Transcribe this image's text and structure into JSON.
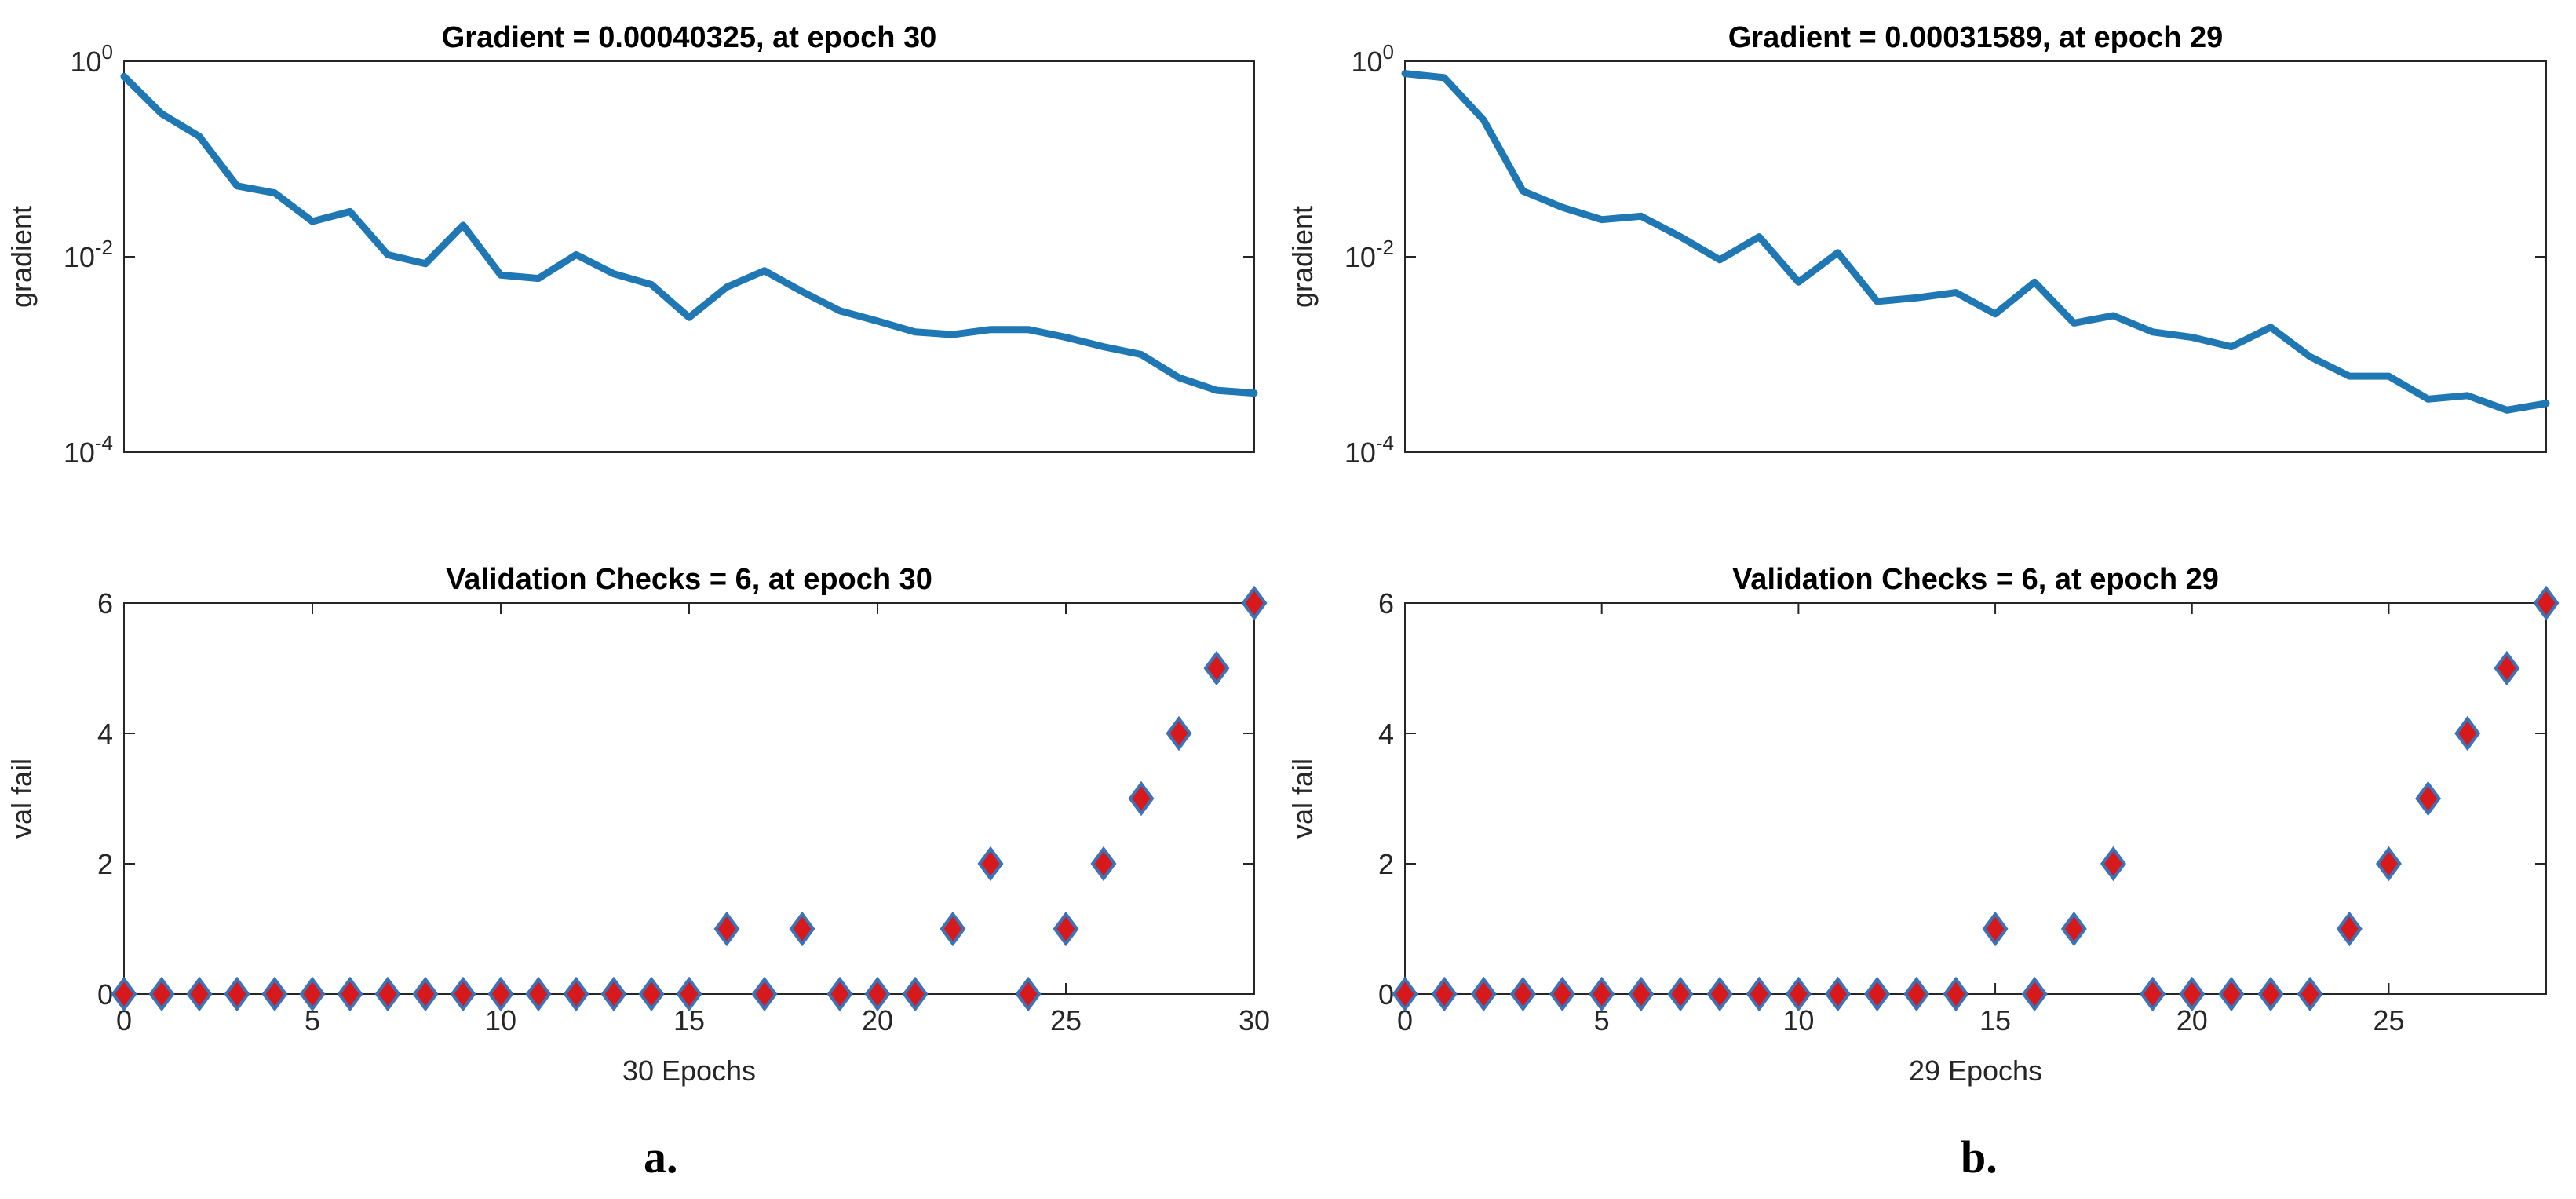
{
  "chart_data": [
    {
      "id": "a-gradient",
      "type": "line",
      "yscale": "log",
      "title": "Gradient = 0.00040325, at epoch 30",
      "ylabel": "gradient",
      "xlabel": "",
      "xlim": [
        0,
        30
      ],
      "ylim": [
        0.0001,
        1
      ],
      "y_ticks": [
        {
          "value": 1,
          "label": "10",
          "exp": "0"
        },
        {
          "value": 0.01,
          "label": "10",
          "exp": "-2"
        },
        {
          "value": 0.0001,
          "label": "10",
          "exp": "-4"
        }
      ],
      "x_ticks": [],
      "series": [
        {
          "name": "gradient",
          "color": "#1f77b4",
          "x": [
            0,
            1,
            2,
            3,
            4,
            5,
            6,
            7,
            8,
            9,
            10,
            11,
            12,
            13,
            14,
            15,
            16,
            17,
            18,
            19,
            20,
            21,
            22,
            23,
            24,
            25,
            26,
            27,
            28,
            29,
            30
          ],
          "y": [
            0.7,
            0.29,
            0.17,
            0.053,
            0.045,
            0.023,
            0.029,
            0.0105,
            0.0085,
            0.021,
            0.0065,
            0.006,
            0.0105,
            0.0067,
            0.0052,
            0.0024,
            0.0049,
            0.0072,
            0.0044,
            0.0028,
            0.0022,
            0.0017,
            0.0016,
            0.0018,
            0.0018,
            0.0015,
            0.0012,
            0.001,
            0.00058,
            0.00043,
            0.00040325
          ]
        }
      ]
    },
    {
      "id": "a-val",
      "type": "scatter",
      "title": "Validation Checks = 6, at epoch 30",
      "ylabel": "val fail",
      "xlabel": "30 Epochs",
      "xlim": [
        0,
        30
      ],
      "ylim": [
        0,
        6
      ],
      "y_ticks": [
        {
          "value": 0,
          "label": "0"
        },
        {
          "value": 2,
          "label": "2"
        },
        {
          "value": 4,
          "label": "4"
        },
        {
          "value": 6,
          "label": "6"
        }
      ],
      "x_ticks": [
        {
          "value": 0,
          "label": "0"
        },
        {
          "value": 5,
          "label": "5"
        },
        {
          "value": 10,
          "label": "10"
        },
        {
          "value": 15,
          "label": "15"
        },
        {
          "value": 20,
          "label": "20"
        },
        {
          "value": 25,
          "label": "25"
        },
        {
          "value": 30,
          "label": "30"
        }
      ],
      "series": [
        {
          "name": "val fail",
          "marker": "diamond",
          "fill": "#d7191c",
          "edge": "#3b73b9",
          "x": [
            0,
            1,
            2,
            3,
            4,
            5,
            6,
            7,
            8,
            9,
            10,
            11,
            12,
            13,
            14,
            15,
            16,
            17,
            18,
            19,
            20,
            21,
            22,
            23,
            24,
            25,
            26,
            27,
            28,
            29,
            30
          ],
          "y": [
            0,
            0,
            0,
            0,
            0,
            0,
            0,
            0,
            0,
            0,
            0,
            0,
            0,
            0,
            0,
            0,
            1,
            0,
            1,
            0,
            0,
            0,
            1,
            2,
            0,
            1,
            2,
            3,
            4,
            5,
            6
          ]
        }
      ]
    },
    {
      "id": "b-gradient",
      "type": "line",
      "yscale": "log",
      "title": "Gradient = 0.00031589, at epoch 29",
      "ylabel": "gradient",
      "xlabel": "",
      "xlim": [
        0,
        29
      ],
      "ylim": [
        0.0001,
        1
      ],
      "y_ticks": [
        {
          "value": 1,
          "label": "10",
          "exp": "0"
        },
        {
          "value": 0.01,
          "label": "10",
          "exp": "-2"
        },
        {
          "value": 0.0001,
          "label": "10",
          "exp": "-4"
        }
      ],
      "x_ticks": [],
      "series": [
        {
          "name": "gradient",
          "color": "#1f77b4",
          "x": [
            0,
            1,
            2,
            3,
            4,
            5,
            6,
            7,
            8,
            9,
            10,
            11,
            12,
            13,
            14,
            15,
            16,
            17,
            18,
            19,
            20,
            21,
            22,
            23,
            24,
            25,
            26,
            27,
            28,
            29
          ],
          "y": [
            0.75,
            0.68,
            0.25,
            0.047,
            0.032,
            0.024,
            0.026,
            0.016,
            0.0093,
            0.016,
            0.0055,
            0.011,
            0.0035,
            0.0038,
            0.0043,
            0.0026,
            0.0055,
            0.0021,
            0.0025,
            0.0017,
            0.0015,
            0.0012,
            0.0019,
            0.00095,
            0.0006,
            0.0006,
            0.00035,
            0.00038,
            0.00027,
            0.00031589
          ]
        }
      ]
    },
    {
      "id": "b-val",
      "type": "scatter",
      "title": "Validation Checks = 6, at epoch 29",
      "ylabel": "val fail",
      "xlabel": "29 Epochs",
      "xlim": [
        0,
        29
      ],
      "ylim": [
        0,
        6
      ],
      "y_ticks": [
        {
          "value": 0,
          "label": "0"
        },
        {
          "value": 2,
          "label": "2"
        },
        {
          "value": 4,
          "label": "4"
        },
        {
          "value": 6,
          "label": "6"
        }
      ],
      "x_ticks": [
        {
          "value": 0,
          "label": "0"
        },
        {
          "value": 5,
          "label": "5"
        },
        {
          "value": 10,
          "label": "10"
        },
        {
          "value": 15,
          "label": "15"
        },
        {
          "value": 20,
          "label": "20"
        },
        {
          "value": 25,
          "label": "25"
        }
      ],
      "series": [
        {
          "name": "val fail",
          "marker": "diamond",
          "fill": "#d7191c",
          "edge": "#3b73b9",
          "x": [
            0,
            1,
            2,
            3,
            4,
            5,
            6,
            7,
            8,
            9,
            10,
            11,
            12,
            13,
            14,
            15,
            16,
            17,
            18,
            19,
            20,
            21,
            22,
            23,
            24,
            25,
            26,
            27,
            28,
            29
          ],
          "y": [
            0,
            0,
            0,
            0,
            0,
            0,
            0,
            0,
            0,
            0,
            0,
            0,
            0,
            0,
            0,
            1,
            0,
            1,
            2,
            0,
            0,
            0,
            0,
            0,
            1,
            2,
            3,
            4,
            5,
            6
          ]
        }
      ]
    }
  ],
  "panel_labels": {
    "a": "a.",
    "b": "b."
  }
}
